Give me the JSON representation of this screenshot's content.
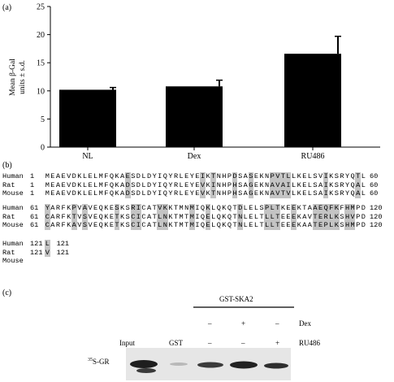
{
  "panels": {
    "a": {
      "label": "(a)"
    },
    "b": {
      "label": "(b)"
    },
    "c": {
      "label": "(c)"
    }
  },
  "chart_data": {
    "type": "bar",
    "categories": [
      "NL",
      "Dex",
      "RU486"
    ],
    "values": [
      10.2,
      10.8,
      16.6
    ],
    "errors": [
      0.4,
      1.1,
      3.1
    ],
    "ylabel_line1": "Mean β-Gal",
    "ylabel_line2": "units ± s.d.",
    "ylim": [
      0,
      25
    ],
    "yticks": [
      0,
      5,
      10,
      15,
      20,
      25
    ],
    "grid": false
  },
  "alignment": {
    "blocks": [
      {
        "rows": [
          {
            "species": "Human",
            "start": "1",
            "seq": "MEAEVDKLELMFQKAESDLDYIQYRLEYEIKTNHPDSASEKNPVTLLKELSVIKSRYQTL",
            "end": "60"
          },
          {
            "species": "Rat",
            "start": "1",
            "seq": "MEAEVDKLELMFQKADSDLDYIQYRLEYEVKINHPHSAGEKNAVAILKELSAIKSRYQAL",
            "end": "60"
          },
          {
            "species": "Mouse",
            "start": "1",
            "seq": "MEAEVDKLELMFQKADSDLDYIQYRLEYEVKTNHPHSAGEKNAVTVLKELSAIKSRYQAL",
            "end": "60"
          }
        ],
        "highlight": [
          15,
          29,
          31,
          35,
          38,
          42,
          43,
          44,
          45,
          52,
          58
        ]
      },
      {
        "rows": [
          {
            "species": "Human",
            "start": "61",
            "seq": "YARFKPVAVEQKESKSRICATVKKTMNMIQKLQKQTDLELSPLTKEEKTAAEQFKFHMPD",
            "end": "120"
          },
          {
            "species": "Rat",
            "start": "61",
            "seq": "CARFKTVSVEQKETKSCICATLNKTMTMIQELQKQTNLELTLLTEEEKAVTERLKSHVPD",
            "end": "120"
          },
          {
            "species": "Mouse",
            "start": "61",
            "seq": "CARFKAVSVEQKETKSCICATLNKTMTMIQELQKQTNLELTLLTEEEKAATEPLKSHMPD",
            "end": "120"
          }
        ],
        "highlight": [
          0,
          5,
          7,
          13,
          16,
          17,
          21,
          22,
          27,
          30,
          36,
          41,
          42,
          43,
          46,
          50,
          51,
          52,
          53,
          54,
          56,
          57
        ]
      },
      {
        "rows": [
          {
            "species": "Human",
            "start": "121",
            "seq": "L",
            "end": "121"
          },
          {
            "species": "Rat",
            "start": "121",
            "seq": "V",
            "end": "121"
          },
          {
            "species": "Mouse",
            "start": "",
            "seq": "",
            "end": ""
          }
        ],
        "highlight": [
          0
        ]
      }
    ]
  },
  "blot": {
    "header": "GST-SKA2",
    "dex_label": "Dex",
    "ru486_label": "RU486",
    "dex_marks": [
      "–",
      "+",
      "–"
    ],
    "ru486_marks": [
      "–",
      "–",
      "+"
    ],
    "lane_input": "Input",
    "lane_gst": "GST",
    "lane_gst_marks": [
      "–"
    ],
    "row_label_prefix": "35",
    "row_label_main": "S-GR"
  },
  "colors": {
    "bar": "#000000",
    "highlight": "#c4c4c4",
    "blot_bg": "#e6e6e6",
    "band": "#2a2a2a"
  }
}
